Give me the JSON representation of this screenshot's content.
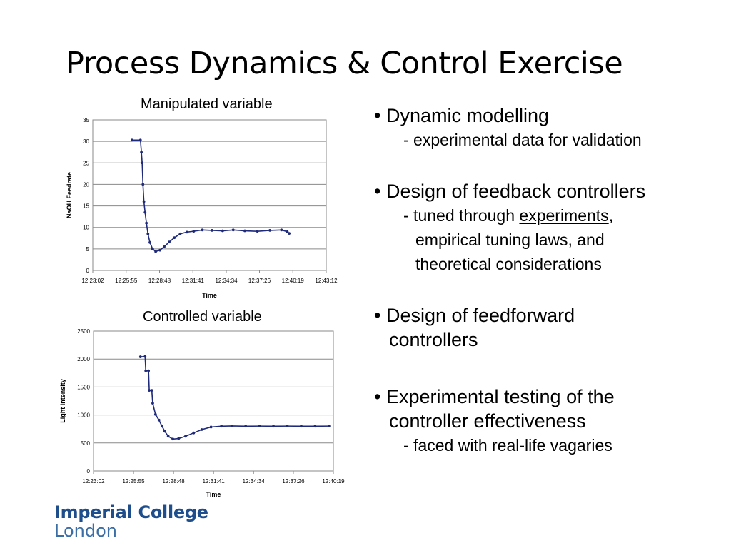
{
  "slide": {
    "title": "Process Dynamics & Control Exercise"
  },
  "chart_data": [
    {
      "type": "scatter",
      "title": "Manipulated variable",
      "xlabel": "Time",
      "ylabel": "NaOH Feedrate",
      "x_ticks": [
        "12:23:02",
        "12:25:55",
        "12:28:48",
        "12:31:41",
        "12:34:34",
        "12:37:26",
        "12:40:19",
        "12:43:12"
      ],
      "y_ticks": [
        0,
        5,
        10,
        15,
        20,
        25,
        30,
        35
      ],
      "ylim": [
        0,
        35
      ],
      "grid": true,
      "marker_color": "#1f2a7a",
      "series": [
        {
          "points": [
            {
              "x": "12:26:25",
              "y": 30.3
            },
            {
              "x": "12:27:09",
              "y": 30.3
            },
            {
              "x": "12:27:14",
              "y": 27.5
            },
            {
              "x": "12:27:18",
              "y": 25
            },
            {
              "x": "12:27:22",
              "y": 20
            },
            {
              "x": "12:27:27",
              "y": 16
            },
            {
              "x": "12:27:33",
              "y": 13.5
            },
            {
              "x": "12:27:40",
              "y": 11
            },
            {
              "x": "12:27:48",
              "y": 8.5
            },
            {
              "x": "12:27:58",
              "y": 6.5
            },
            {
              "x": "12:28:12",
              "y": 5
            },
            {
              "x": "12:28:28",
              "y": 4.4
            },
            {
              "x": "12:28:50",
              "y": 4.7
            },
            {
              "x": "12:29:12",
              "y": 5.5
            },
            {
              "x": "12:29:38",
              "y": 6.6
            },
            {
              "x": "12:30:05",
              "y": 7.6
            },
            {
              "x": "12:30:35",
              "y": 8.5
            },
            {
              "x": "12:31:10",
              "y": 8.9
            },
            {
              "x": "12:31:45",
              "y": 9.1
            },
            {
              "x": "12:32:30",
              "y": 9.4
            },
            {
              "x": "12:33:20",
              "y": 9.3
            },
            {
              "x": "12:34:15",
              "y": 9.2
            },
            {
              "x": "12:35:10",
              "y": 9.4
            },
            {
              "x": "12:36:10",
              "y": 9.2
            },
            {
              "x": "12:37:15",
              "y": 9.1
            },
            {
              "x": "12:38:20",
              "y": 9.3
            },
            {
              "x": "12:39:20",
              "y": 9.4
            },
            {
              "x": "12:39:50",
              "y": 9.0
            },
            {
              "x": "12:40:00",
              "y": 8.6
            }
          ]
        }
      ]
    },
    {
      "type": "scatter",
      "title": "Controlled variable",
      "xlabel": "Time",
      "ylabel": "Light Intensity",
      "x_ticks": [
        "12:23:02",
        "12:25:55",
        "12:28:48",
        "12:31:41",
        "12:34:34",
        "12:37:26",
        "12:40:19"
      ],
      "y_ticks": [
        0,
        500,
        1000,
        1500,
        2000,
        2500
      ],
      "ylim": [
        0,
        2500
      ],
      "grid": true,
      "marker_color": "#1f2a7a",
      "series": [
        {
          "points": [
            {
              "x": "12:26:25",
              "y": 2040
            },
            {
              "x": "12:26:45",
              "y": 2045
            },
            {
              "x": "12:26:48",
              "y": 1790
            },
            {
              "x": "12:27:00",
              "y": 1790
            },
            {
              "x": "12:27:03",
              "y": 1440
            },
            {
              "x": "12:27:14",
              "y": 1440
            },
            {
              "x": "12:27:18",
              "y": 1210
            },
            {
              "x": "12:27:30",
              "y": 1010
            },
            {
              "x": "12:27:45",
              "y": 910
            },
            {
              "x": "12:27:58",
              "y": 800
            },
            {
              "x": "12:28:10",
              "y": 710
            },
            {
              "x": "12:28:25",
              "y": 620
            },
            {
              "x": "12:28:45",
              "y": 570
            },
            {
              "x": "12:29:10",
              "y": 580
            },
            {
              "x": "12:29:40",
              "y": 620
            },
            {
              "x": "12:30:15",
              "y": 680
            },
            {
              "x": "12:30:50",
              "y": 740
            },
            {
              "x": "12:31:30",
              "y": 785
            },
            {
              "x": "12:32:15",
              "y": 800
            },
            {
              "x": "12:33:00",
              "y": 805
            },
            {
              "x": "12:34:00",
              "y": 800
            },
            {
              "x": "12:35:00",
              "y": 802
            },
            {
              "x": "12:36:00",
              "y": 800
            },
            {
              "x": "12:37:00",
              "y": 802
            },
            {
              "x": "12:38:00",
              "y": 800
            },
            {
              "x": "12:39:00",
              "y": 800
            },
            {
              "x": "12:40:00",
              "y": 802
            }
          ]
        }
      ]
    }
  ],
  "bullets": {
    "b1": "• Dynamic modelling",
    "b1_sub": "- experimental data for validation",
    "b2": "• Design of feedback controllers",
    "b2_sub_a": "- tuned through ",
    "b2_sub_link": "experiments",
    "b2_sub_b": ",",
    "b2_sub2": "empirical tuning laws, and",
    "b2_sub3": "theoretical considerations",
    "b3": "• Design of feedforward",
    "b3_cont": "controllers",
    "b4": "• Experimental testing of the",
    "b4_cont": "controller effectiveness",
    "b4_sub": "- faced with real-life vagaries"
  },
  "logo": {
    "line1": "Imperial College",
    "line2": "London"
  }
}
